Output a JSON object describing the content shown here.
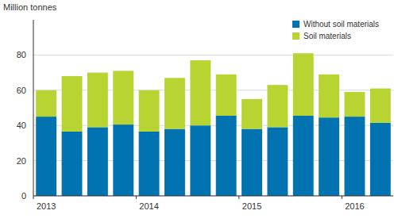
{
  "chart_data": {
    "type": "bar",
    "stacked": true,
    "grid": true,
    "legend": "top-right",
    "y_label": "Million tonnes",
    "categories": [
      "2013",
      null,
      null,
      null,
      "2014",
      null,
      null,
      null,
      "2015",
      null,
      null,
      null,
      "2016",
      null
    ],
    "series": [
      {
        "name": "Without soil materials",
        "color": "#0073b0",
        "values": [
          45,
          36.5,
          39,
          40.5,
          36.5,
          38,
          40,
          45.5,
          38,
          39,
          45.5,
          44.5,
          45,
          41.5
        ]
      },
      {
        "name": "Soil materials",
        "color": "#b8d433",
        "values": [
          15,
          31.5,
          31,
          30.5,
          23.5,
          29,
          37,
          23.5,
          17,
          24,
          35.5,
          24.5,
          14,
          19.5
        ]
      }
    ],
    "ylim": [
      0,
      100
    ],
    "yticks": [
      0,
      20,
      40,
      60,
      80
    ]
  }
}
